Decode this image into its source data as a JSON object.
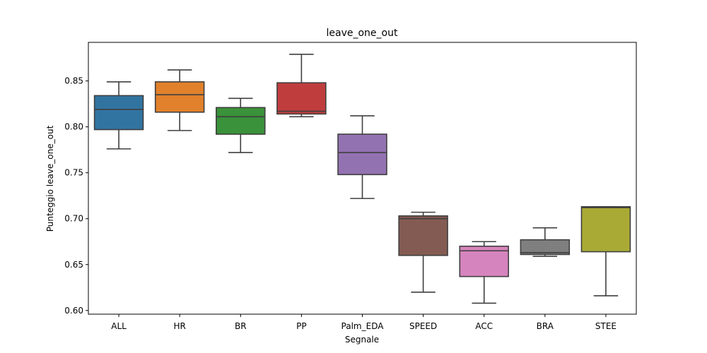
{
  "chart_data": {
    "type": "box",
    "title": "leave_one_out",
    "xlabel": "Segnale",
    "ylabel": "Punteggio leave_one_out",
    "ylim": [
      0.596,
      0.892
    ],
    "yticks": [
      0.6,
      0.65,
      0.7,
      0.75,
      0.8,
      0.85
    ],
    "ytick_labels": [
      "0.60",
      "0.65",
      "0.70",
      "0.75",
      "0.80",
      "0.85"
    ],
    "grid": false,
    "categories": [
      "ALL",
      "HR",
      "BR",
      "PP",
      "Palm_EDA",
      "SPEED",
      "ACC",
      "BRA",
      "STEE"
    ],
    "boxes": [
      {
        "whisker_low": 0.776,
        "q1": 0.797,
        "median": 0.819,
        "q3": 0.834,
        "whisker_high": 0.849,
        "color": "#3274a1"
      },
      {
        "whisker_low": 0.796,
        "q1": 0.816,
        "median": 0.835,
        "q3": 0.849,
        "whisker_high": 0.862,
        "color": "#e1812c"
      },
      {
        "whisker_low": 0.772,
        "q1": 0.792,
        "median": 0.811,
        "q3": 0.821,
        "whisker_high": 0.831,
        "color": "#3a923a"
      },
      {
        "whisker_low": 0.811,
        "q1": 0.814,
        "median": 0.817,
        "q3": 0.848,
        "whisker_high": 0.879,
        "color": "#c03d3e"
      },
      {
        "whisker_low": 0.722,
        "q1": 0.748,
        "median": 0.772,
        "q3": 0.792,
        "whisker_high": 0.812,
        "color": "#9372b2"
      },
      {
        "whisker_low": 0.62,
        "q1": 0.66,
        "median": 0.7,
        "q3": 0.703,
        "whisker_high": 0.707,
        "color": "#845b53"
      },
      {
        "whisker_low": 0.608,
        "q1": 0.637,
        "median": 0.665,
        "q3": 0.67,
        "whisker_high": 0.675,
        "color": "#d684bd"
      },
      {
        "whisker_low": 0.659,
        "q1": 0.661,
        "median": 0.663,
        "q3": 0.677,
        "whisker_high": 0.69,
        "color": "#7f7f7f"
      },
      {
        "whisker_low": 0.616,
        "q1": 0.664,
        "median": 0.712,
        "q3": 0.713,
        "whisker_high": 0.713,
        "color": "#a9aa35"
      }
    ]
  }
}
